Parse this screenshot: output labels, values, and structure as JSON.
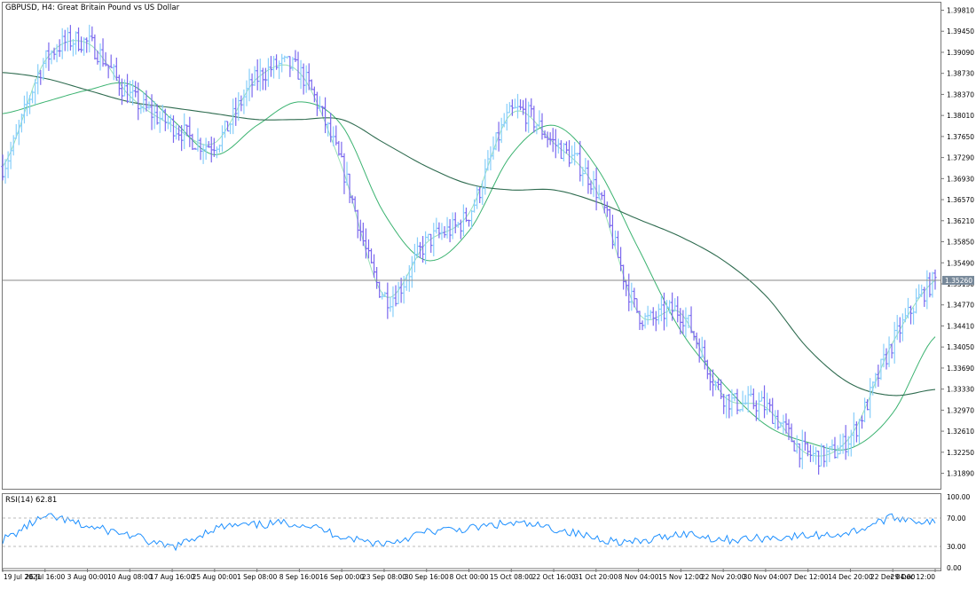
{
  "header": {
    "symbol": "GBPUSD",
    "timeframe": "H4",
    "description": "Great Britain Pound vs US Dollar",
    "title": "GBPUSD, H4:  Great Britain Pound vs US Dollar"
  },
  "price_axis": {
    "labels": [
      "1.39810",
      "1.39450",
      "1.39090",
      "1.38730",
      "1.38370",
      "1.38010",
      "1.37650",
      "1.37290",
      "1.36930",
      "1.36570",
      "1.36210",
      "1.35850",
      "1.35490",
      "1.35130",
      "1.34770",
      "1.34410",
      "1.34050",
      "1.33690",
      "1.33330",
      "1.32970",
      "1.32610",
      "1.32250",
      "1.31890"
    ],
    "current_price_label": "1.35260"
  },
  "rsi_panel": {
    "title": "RSI(14) 62.81",
    "labels": [
      "100.00",
      "70.00",
      "30.00",
      "0.00"
    ]
  },
  "time_axis": {
    "labels": [
      "19 Jul 2021",
      "26 Jul 16:00",
      "3 Aug 00:00",
      "10 Aug 08:00",
      "17 Aug 16:00",
      "25 Aug 00:00",
      "1 Sep 08:00",
      "8 Sep 16:00",
      "16 Sep 00:00",
      "23 Sep 08:00",
      "30 Sep 16:00",
      "8 Oct 00:00",
      "15 Oct 08:00",
      "22 Oct 16:00",
      "31 Oct 20:00",
      "8 Nov 04:00",
      "15 Nov 12:00",
      "22 Nov 20:00",
      "30 Nov 04:00",
      "7 Dec 12:00",
      "14 Dec 20:00",
      "22 Dec 04:00",
      "29 Dec 12:00"
    ]
  },
  "colors": {
    "bull_bar": "#87cefa",
    "bear_bar": "#7b68ee",
    "ma_fast": "#98e0b8",
    "ma_mid": "#3cb371",
    "ma_slow": "#2e6b4f",
    "rsi_line": "#1e90ff",
    "price_line": "#8a8a8a",
    "price_label_bg": "#778899"
  },
  "chart_data": [
    {
      "type": "bar",
      "title": "GBPUSD, H4:  Great Britain Pound vs US Dollar",
      "ylim": [
        1.3171,
        1.3999
      ],
      "x": [
        "19 Jul 2021",
        "26 Jul 16:00",
        "3 Aug 00:00",
        "10 Aug 08:00",
        "17 Aug 16:00",
        "25 Aug 00:00",
        "1 Sep 08:00",
        "8 Sep 16:00",
        "16 Sep 00:00",
        "23 Sep 08:00",
        "30 Sep 16:00",
        "8 Oct 00:00",
        "15 Oct 08:00",
        "22 Oct 16:00",
        "31 Oct 20:00",
        "8 Nov 04:00",
        "15 Nov 12:00",
        "22 Nov 20:00",
        "30 Nov 04:00",
        "7 Dec 12:00",
        "14 Dec 20:00",
        "22 Dec 04:00",
        "29 Dec 12:00"
      ],
      "series": [
        {
          "values": [
            1.372,
            1.39,
            1.393,
            1.384,
            1.379,
            1.376,
            1.387,
            1.388,
            1.372,
            1.35,
            1.359,
            1.364,
            1.381,
            1.376,
            1.368,
            1.347,
            1.347,
            1.333,
            1.331,
            1.323,
            1.326,
            1.342,
            1.3526
          ]
        },
        {
          "values": [
            1.381,
            1.383,
            1.385,
            1.386,
            1.38,
            1.374,
            1.379,
            1.383,
            1.379,
            1.364,
            1.356,
            1.361,
            1.374,
            1.379,
            1.372,
            1.358,
            1.344,
            1.335,
            1.328,
            1.325,
            1.324,
            1.33,
            1.343
          ]
        },
        {
          "values": [
            1.388,
            1.387,
            1.385,
            1.383,
            1.382,
            1.381,
            1.38,
            1.38,
            1.38,
            1.376,
            1.372,
            1.369,
            1.368,
            1.368,
            1.366,
            1.363,
            1.36,
            1.356,
            1.35,
            1.341,
            1.335,
            1.333,
            1.334
          ]
        }
      ]
    },
    {
      "type": "line",
      "title": "RSI(14) 62.81",
      "ylim": [
        0,
        100
      ],
      "x": [
        "19 Jul 2021",
        "26 Jul 16:00",
        "3 Aug 00:00",
        "10 Aug 08:00",
        "17 Aug 16:00",
        "25 Aug 00:00",
        "1 Sep 08:00",
        "8 Sep 16:00",
        "16 Sep 00:00",
        "23 Sep 08:00",
        "30 Sep 16:00",
        "8 Oct 00:00",
        "15 Oct 08:00",
        "22 Oct 16:00",
        "31 Oct 20:00",
        "8 Nov 04:00",
        "15 Nov 12:00",
        "22 Nov 20:00",
        "30 Nov 04:00",
        "7 Dec 12:00",
        "14 Dec 20:00",
        "22 Dec 04:00",
        "29 Dec 12:00"
      ],
      "series": [
        {
          "values": [
            40,
            70,
            58,
            46,
            30,
            55,
            60,
            62,
            45,
            35,
            50,
            55,
            62,
            55,
            42,
            36,
            48,
            40,
            42,
            45,
            50,
            70,
            62.81
          ]
        }
      ]
    }
  ]
}
